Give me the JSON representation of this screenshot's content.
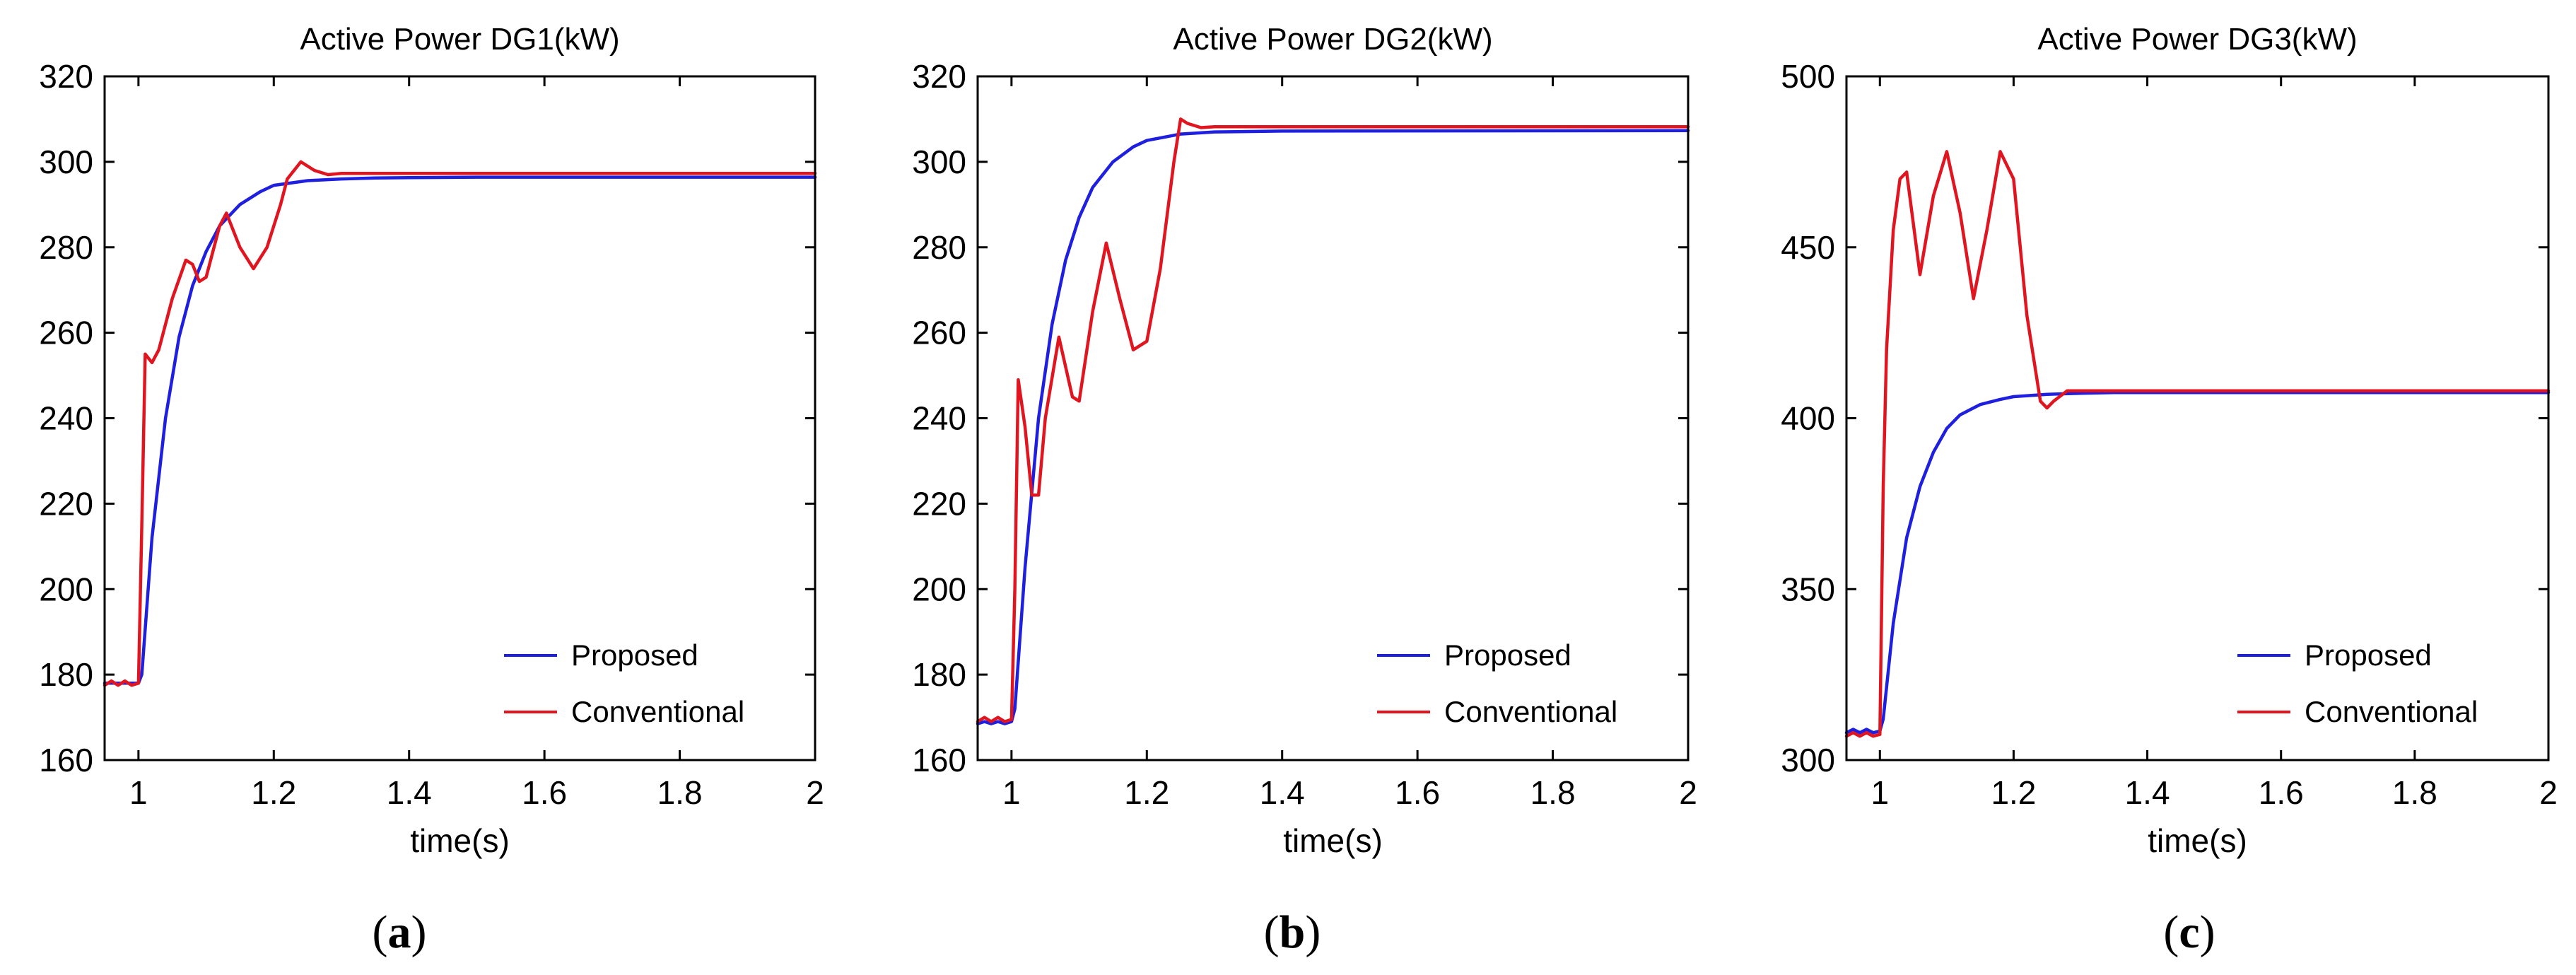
{
  "chart_data": [
    {
      "type": "line",
      "title": "Active Power DG1(kW)",
      "xlabel": "time(s)",
      "ylabel": "",
      "xlim": [
        0.95,
        2
      ],
      "ylim": [
        160,
        320
      ],
      "xticks": [
        1,
        1.2,
        1.4,
        1.6,
        1.8,
        2
      ],
      "xtick_labels": [
        "1",
        "1.2",
        "1.4",
        "1.6",
        "1.8",
        "2"
      ],
      "yticks": [
        160,
        180,
        200,
        220,
        240,
        260,
        280,
        300,
        320
      ],
      "ytick_labels": [
        "160",
        "180",
        "200",
        "220",
        "240",
        "260",
        "280",
        "300",
        "320"
      ],
      "legend_position": "bottom-right",
      "sublabel": {
        "open": "(",
        "letter": "a",
        "close": ")"
      },
      "series": [
        {
          "name": "Proposed",
          "color": "#1f1fe0",
          "x": [
            0.95,
            0.96,
            0.97,
            0.98,
            0.99,
            1.0,
            1.005,
            1.02,
            1.04,
            1.06,
            1.08,
            1.1,
            1.12,
            1.15,
            1.18,
            1.2,
            1.25,
            1.3,
            1.35,
            1.4,
            1.5,
            2.0
          ],
          "y": [
            178,
            178,
            178,
            178,
            178,
            178,
            180,
            212,
            240,
            259,
            271,
            279,
            285,
            290,
            293,
            294.5,
            295.6,
            296,
            296.2,
            296.3,
            296.4,
            296.4
          ]
        },
        {
          "name": "Conventional",
          "color": "#e0151f",
          "x": [
            0.95,
            0.96,
            0.97,
            0.98,
            0.99,
            1.0,
            1.005,
            1.01,
            1.02,
            1.03,
            1.05,
            1.07,
            1.08,
            1.09,
            1.1,
            1.12,
            1.13,
            1.15,
            1.17,
            1.19,
            1.21,
            1.22,
            1.24,
            1.26,
            1.28,
            1.3,
            2.0
          ],
          "y": [
            177.5,
            178.5,
            177.5,
            178.5,
            177.5,
            178,
            215,
            255,
            253,
            256,
            268,
            277,
            276,
            272,
            273,
            285,
            288,
            280,
            275,
            280,
            290,
            296,
            300,
            298,
            297,
            297.3,
            297.3
          ]
        }
      ]
    },
    {
      "type": "line",
      "title": "Active Power DG2(kW)",
      "xlabel": "time(s)",
      "ylabel": "",
      "xlim": [
        0.95,
        2
      ],
      "ylim": [
        160,
        320
      ],
      "xticks": [
        1,
        1.2,
        1.4,
        1.6,
        1.8,
        2
      ],
      "xtick_labels": [
        "1",
        "1.2",
        "1.4",
        "1.6",
        "1.8",
        "2"
      ],
      "yticks": [
        160,
        180,
        200,
        220,
        240,
        260,
        280,
        300,
        320
      ],
      "ytick_labels": [
        "160",
        "180",
        "200",
        "220",
        "240",
        "260",
        "280",
        "300",
        "320"
      ],
      "legend_position": "bottom-right",
      "sublabel": {
        "open": "(",
        "letter": "b",
        "close": ")"
      },
      "series": [
        {
          "name": "Proposed",
          "color": "#1f1fe0",
          "x": [
            0.95,
            0.96,
            0.97,
            0.98,
            0.99,
            1.0,
            1.005,
            1.02,
            1.04,
            1.06,
            1.08,
            1.1,
            1.12,
            1.15,
            1.18,
            1.2,
            1.25,
            1.3,
            1.4,
            2.0
          ],
          "y": [
            168.5,
            169,
            168.5,
            169,
            168.5,
            169,
            172,
            205,
            240,
            262,
            277,
            287,
            294,
            300,
            303.5,
            305,
            306.5,
            307,
            307.2,
            307.3
          ]
        },
        {
          "name": "Conventional",
          "color": "#e0151f",
          "x": [
            0.95,
            0.96,
            0.97,
            0.98,
            0.99,
            1.0,
            1.005,
            1.01,
            1.02,
            1.03,
            1.04,
            1.05,
            1.07,
            1.09,
            1.1,
            1.12,
            1.14,
            1.16,
            1.18,
            1.2,
            1.22,
            1.24,
            1.25,
            1.26,
            1.28,
            1.3,
            2.0
          ],
          "y": [
            169,
            170,
            169,
            170,
            169,
            169.5,
            200,
            249,
            238,
            222,
            222,
            240,
            259,
            245,
            244,
            265,
            281,
            268,
            256,
            258,
            275,
            300,
            310,
            309,
            308,
            308.2,
            308.2
          ]
        }
      ]
    },
    {
      "type": "line",
      "title": "Active Power DG3(kW)",
      "xlabel": "time(s)",
      "ylabel": "",
      "xlim": [
        0.95,
        2
      ],
      "ylim": [
        300,
        500
      ],
      "xticks": [
        1,
        1.2,
        1.4,
        1.6,
        1.8,
        2
      ],
      "xtick_labels": [
        "1",
        "1.2",
        "1.4",
        "1.6",
        "1.8",
        "2"
      ],
      "yticks": [
        300,
        350,
        400,
        450,
        500
      ],
      "ytick_labels": [
        "300",
        "350",
        "400",
        "450",
        "500"
      ],
      "legend_position": "bottom-right",
      "sublabel": {
        "open": "(",
        "letter": "c",
        "close": ")"
      },
      "series": [
        {
          "name": "Proposed",
          "color": "#1f1fe0",
          "x": [
            0.95,
            0.96,
            0.97,
            0.98,
            0.99,
            1.0,
            1.005,
            1.02,
            1.04,
            1.06,
            1.08,
            1.1,
            1.12,
            1.15,
            1.18,
            1.2,
            1.25,
            1.3,
            1.35,
            1.4,
            2.0
          ],
          "y": [
            308,
            309,
            308,
            309,
            308,
            308.5,
            312,
            340,
            365,
            380,
            390,
            397,
            401,
            404,
            405.5,
            406.3,
            407,
            407.3,
            407.5,
            407.5,
            407.5
          ]
        },
        {
          "name": "Conventional",
          "color": "#e0151f",
          "x": [
            0.95,
            0.96,
            0.97,
            0.98,
            0.99,
            1.0,
            1.005,
            1.01,
            1.02,
            1.03,
            1.04,
            1.06,
            1.08,
            1.1,
            1.12,
            1.14,
            1.16,
            1.18,
            1.2,
            1.22,
            1.24,
            1.25,
            1.26,
            1.28,
            1.3,
            2.0
          ],
          "y": [
            307,
            308,
            307,
            308,
            307,
            307.5,
            380,
            420,
            455,
            470,
            472,
            442,
            465,
            478,
            460,
            435,
            455,
            478,
            470,
            430,
            405,
            403,
            405,
            408,
            408,
            408
          ]
        }
      ]
    }
  ]
}
